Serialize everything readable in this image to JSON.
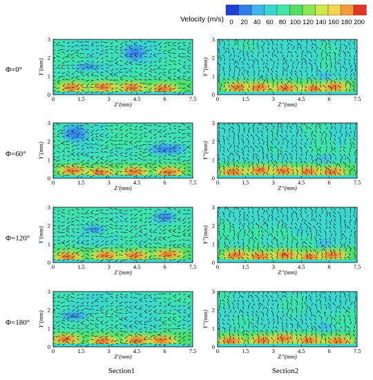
{
  "colorbar": {
    "title": "Velocity (m/s)",
    "ticks": [
      "0",
      "20",
      "40",
      "60",
      "80",
      "100",
      "120",
      "140",
      "160",
      "180",
      "200"
    ],
    "colors": [
      "#1f3fd6",
      "#2f7fe8",
      "#3fb5ee",
      "#39d6d2",
      "#3fe6a4",
      "#50df62",
      "#8ae64a",
      "#cde84a",
      "#f3d44a",
      "#f39a3a",
      "#e43524"
    ]
  },
  "rows": [
    {
      "label": "Φ=0°"
    },
    {
      "label": "Φ=60°"
    },
    {
      "label": "Φ=120°"
    },
    {
      "label": "Φ=180°"
    }
  ],
  "columns": [
    {
      "label": "Section1",
      "xlabel": "Z’(mm)",
      "ylabel": "Y’(mm)"
    },
    {
      "label": "Section2",
      "xlabel": "Z’’(mm)",
      "ylabel": "Y’’(mm)"
    }
  ],
  "axes": {
    "x_ticks": [
      "0",
      "1.5",
      "3",
      "4.5",
      "6",
      "7.5"
    ],
    "y_ticks": [
      "0",
      "1",
      "2",
      "3"
    ],
    "xlim": [
      0,
      7.5
    ],
    "ylim": [
      0,
      3
    ]
  }
}
